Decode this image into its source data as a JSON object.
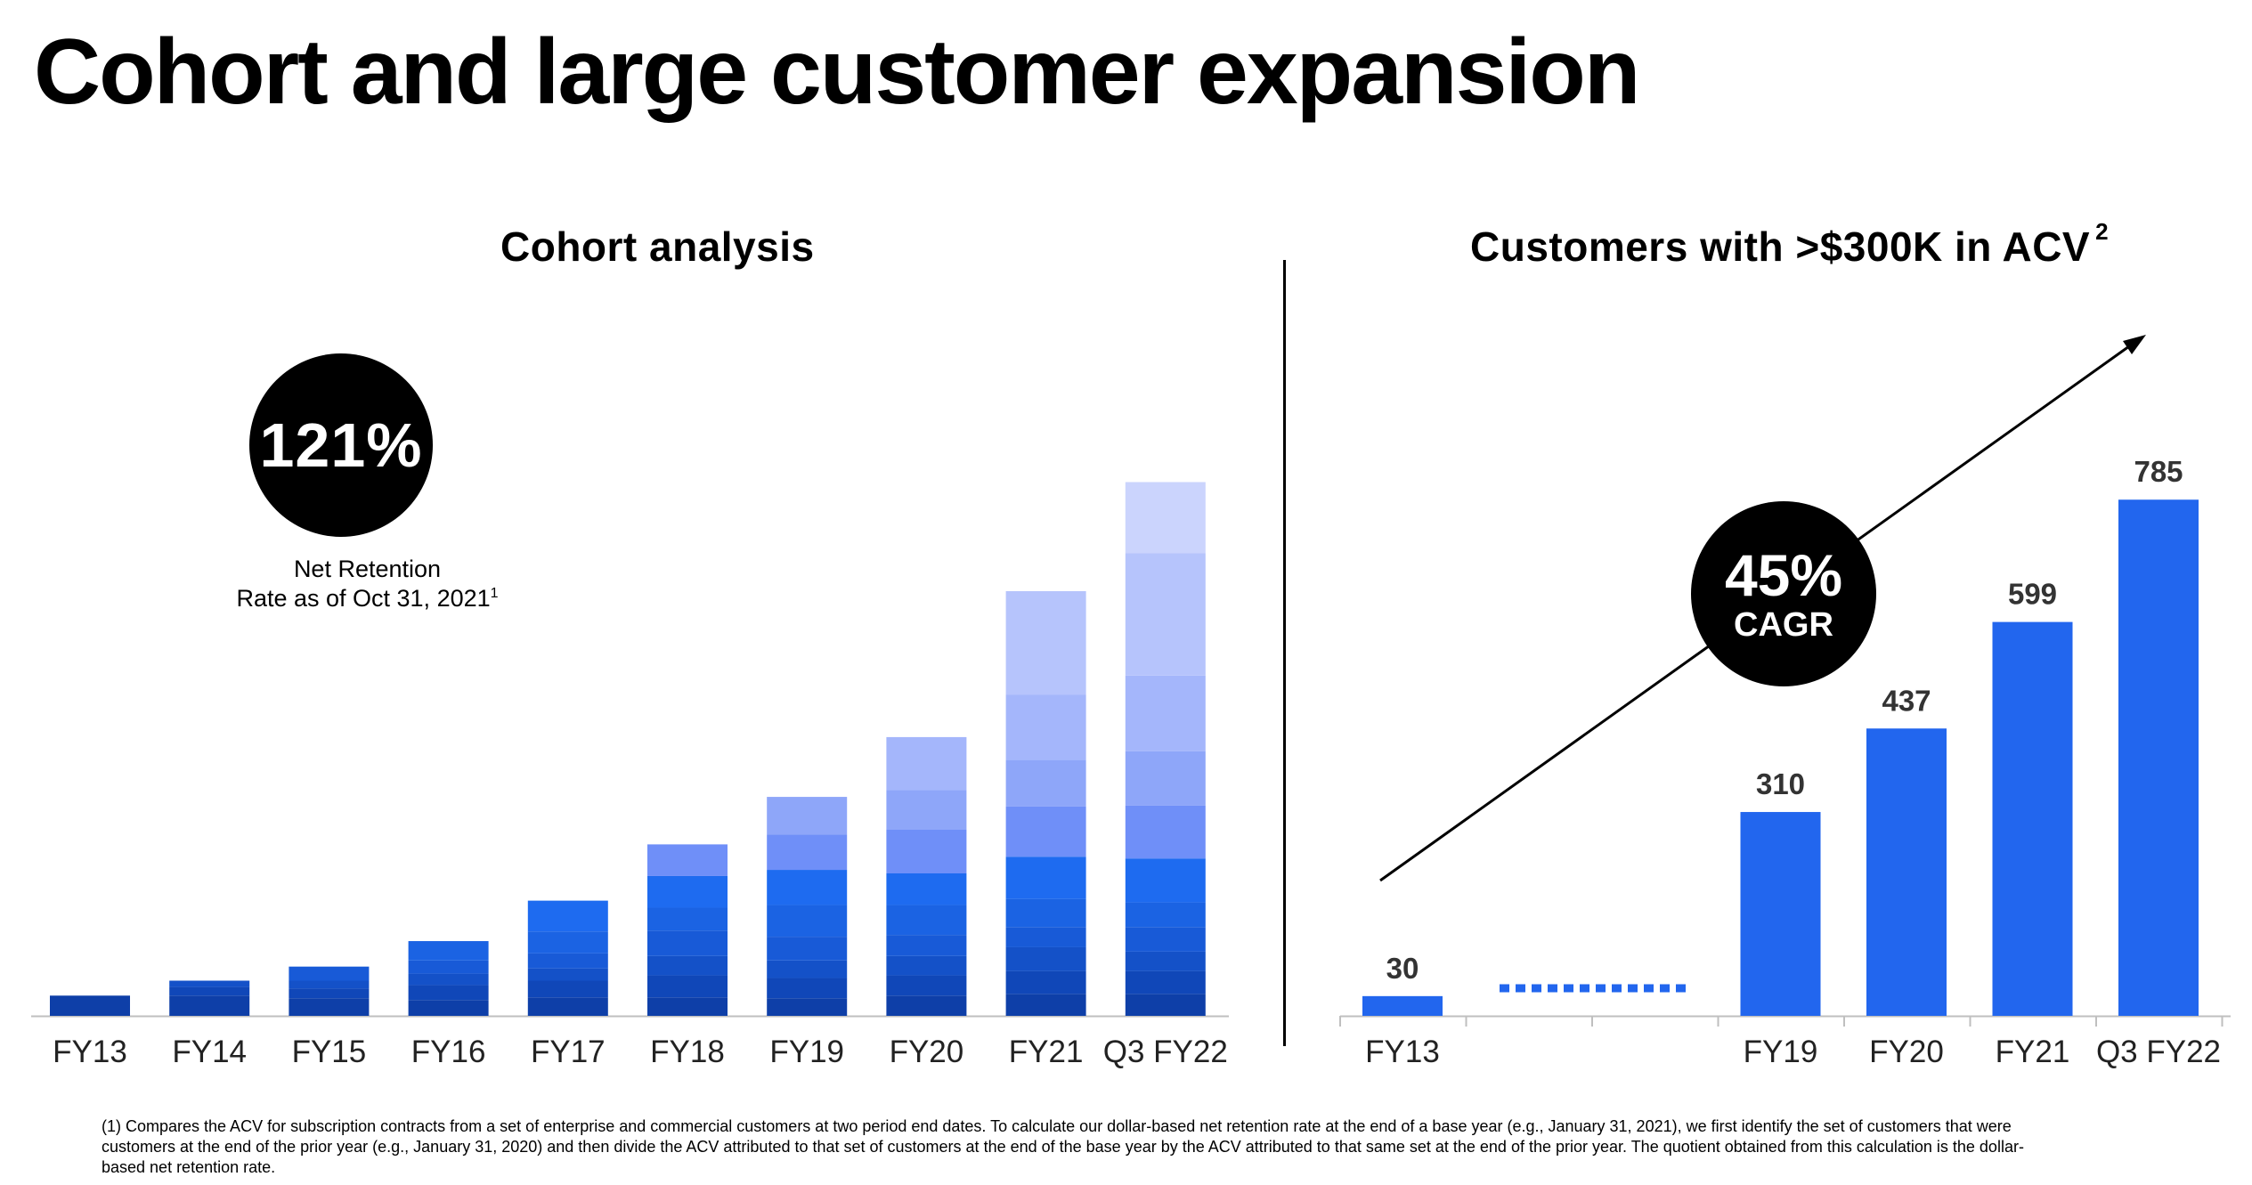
{
  "page": {
    "title": "Cohort and large customer expansion",
    "footnote": "(1)  Compares the ACV for subscription contracts from a set of enterprise and commercial customers at two period end dates. To calculate our dollar-based net retention rate at the end of a base year (e.g., January 31, 2021), we first identify the set of customers that were customers at the end of the prior year (e.g., January 31, 2020) and then divide the ACV attributed to that set of customers at the end of the base year by the ACV attributed to that same set at the end of the prior year. The quotient obtained from this calculation is the dollar-based net retention rate."
  },
  "cohort_panel": {
    "heading": "Cohort analysis",
    "badge_value": "121%",
    "caption_line1": "Net Retention",
    "caption_line2": "Rate as of Oct 31, 2021",
    "caption_footnote_mark": "1"
  },
  "customers_panel": {
    "heading": "Customers with >$300K in ACV",
    "heading_footnote_mark": "2",
    "badge_value": "45%",
    "badge_label": "CAGR"
  },
  "colors": {
    "cohort_shades": [
      "#0e3fa8",
      "#1047b8",
      "#1451c8",
      "#185ad7",
      "#1b63e3",
      "#1e6bf0",
      "#6f8ff8",
      "#8ea6f9",
      "#a4b6fb",
      "#b6c4fc",
      "#cbd4fd"
    ],
    "bar_blue": "#2266ee",
    "axis": "#bfbfbf"
  },
  "chart_data": [
    {
      "type": "bar",
      "stacked": true,
      "title": "Cohort analysis",
      "categories": [
        "FY13",
        "FY14",
        "FY15",
        "FY16",
        "FY17",
        "FY18",
        "FY19",
        "FY20",
        "FY21",
        "Q3 FY22"
      ],
      "series": [
        {
          "values": [
            23,
            23,
            20,
            18,
            21,
            21,
            20,
            23,
            25,
            25
          ]
        },
        {
          "values": [
            0,
            10,
            11,
            17,
            19,
            25,
            23,
            23,
            26,
            26
          ]
        },
        {
          "values": [
            0,
            7,
            9,
            13,
            14,
            22,
            20,
            22,
            27,
            22
          ]
        },
        {
          "values": [
            0,
            0,
            16,
            15,
            17,
            29,
            27,
            24,
            23,
            28
          ]
        },
        {
          "values": [
            0,
            0,
            0,
            22,
            25,
            26,
            36,
            34,
            32,
            28
          ]
        },
        {
          "values": [
            0,
            0,
            0,
            0,
            35,
            36,
            40,
            36,
            48,
            50
          ]
        },
        {
          "values": [
            0,
            0,
            0,
            0,
            0,
            36,
            40,
            50,
            57,
            60
          ]
        },
        {
          "values": [
            0,
            0,
            0,
            0,
            0,
            0,
            43,
            45,
            53,
            62
          ]
        },
        {
          "values": [
            0,
            0,
            0,
            0,
            0,
            0,
            0,
            60,
            74,
            86
          ]
        },
        {
          "values": [
            0,
            0,
            0,
            0,
            0,
            0,
            0,
            0,
            118,
            139
          ]
        },
        {
          "values": [
            0,
            0,
            0,
            0,
            0,
            0,
            0,
            0,
            0,
            81
          ]
        }
      ],
      "ylim": [
        0,
        730
      ]
    },
    {
      "type": "bar",
      "title": "Customers with >$300K in ACV",
      "categories": [
        "FY13",
        "",
        "",
        "FY19",
        "FY20",
        "FY21",
        "Q3 FY22"
      ],
      "values": [
        30,
        null,
        null,
        310,
        437,
        599,
        785
      ],
      "value_labels": [
        "30",
        "",
        "",
        "310",
        "437",
        "599",
        "785"
      ],
      "ylim": [
        0,
        830
      ],
      "annotation": "45% CAGR"
    }
  ]
}
